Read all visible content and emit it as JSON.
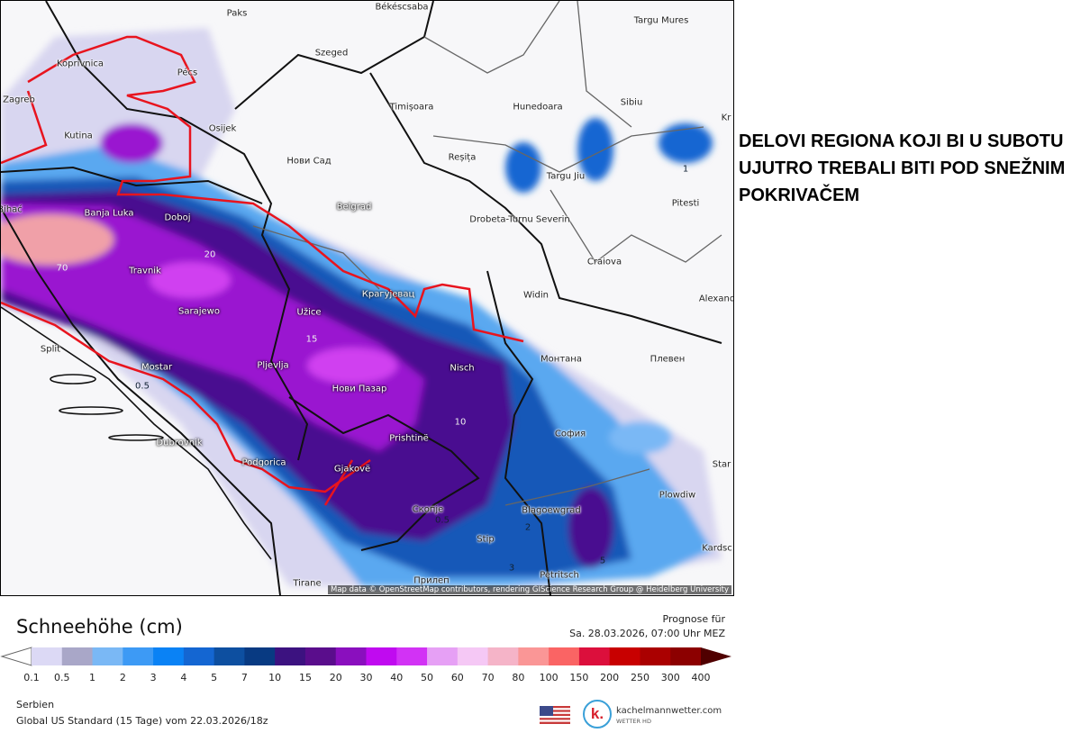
{
  "headline": "DELOVI REGIONA KOJI BI U SUBOTU UJUTRO TREBALI BITI POD SNEŽNIM POKRIVAČEM",
  "map": {
    "credit": "Map data © OpenStreetMap contributors, rendering GIScience Research Group @ Heidelberg University",
    "highlight_outline_color": "#e8141e",
    "cities": [
      "Paks",
      "Békéscsaba",
      "Targu Mures",
      "Szeged",
      "Koprivnica",
      "Pécs",
      "Zagreb",
      "Timișoara",
      "Hunedoara",
      "Sibiu",
      "Kr",
      "Osijek",
      "Kutina",
      "Нови Сад",
      "Reșița",
      "Targu Jiu",
      "Pitesti",
      "Belgrad",
      "Drobeta-Turnu Severin",
      "Banja Luka",
      "Doboj",
      "Bihać",
      "Craiova",
      "Travnik",
      "Widin",
      "Alexand",
      "Крагујевац",
      "Sarajewo",
      "Užice",
      "Split",
      "Mostar",
      "Pljevlja",
      "Монтана",
      "Плевен",
      "Нови Пазар",
      "Nisch",
      "София",
      "Prishtinë",
      "Dubrovnik",
      "Podgorica",
      "Gjakovë",
      "Star",
      "Скопје",
      "Blagoewgrad",
      "Plowdiw",
      "Stip",
      "Kardsc",
      "Прилеп",
      "Petritsch",
      "Tirane"
    ],
    "contour_labels": [
      "70",
      "20",
      "15",
      "10",
      "0.5",
      "2",
      "3",
      "5",
      "1",
      "0.5"
    ]
  },
  "legend": {
    "title": "Schneehöhe (cm)",
    "forecast_label": "Prognose für",
    "forecast_time": "Sa. 28.03.2026, 07:00 Uhr MEZ",
    "ticks": [
      "0.1",
      "0.5",
      "1",
      "2",
      "3",
      "4",
      "5",
      "7",
      "10",
      "15",
      "20",
      "30",
      "40",
      "50",
      "60",
      "70",
      "80",
      "100",
      "150",
      "200",
      "250",
      "300",
      "400"
    ],
    "colors": [
      "#dcd9f5",
      "#a9a7c8",
      "#7ab8f5",
      "#3d9af5",
      "#0a82f5",
      "#1466d2",
      "#0d4fa0",
      "#083a82",
      "#3c1280",
      "#5a0d8c",
      "#8a0fbe",
      "#c00af0",
      "#d232f5",
      "#e6a0f5",
      "#f5c8f5",
      "#f5b4c8",
      "#fa9696",
      "#fa6464",
      "#dc0f3c",
      "#c80000",
      "#aa0000",
      "#8c0000"
    ],
    "overflow_color": "#500000"
  },
  "footer": {
    "region": "Serbien",
    "model_run": "Global US Standard (15 Tage) vom  22.03.2026/18z",
    "brand": "kachelmannwetter.com",
    "brand_sub": "WETTER HD",
    "logo_letter": "k."
  }
}
